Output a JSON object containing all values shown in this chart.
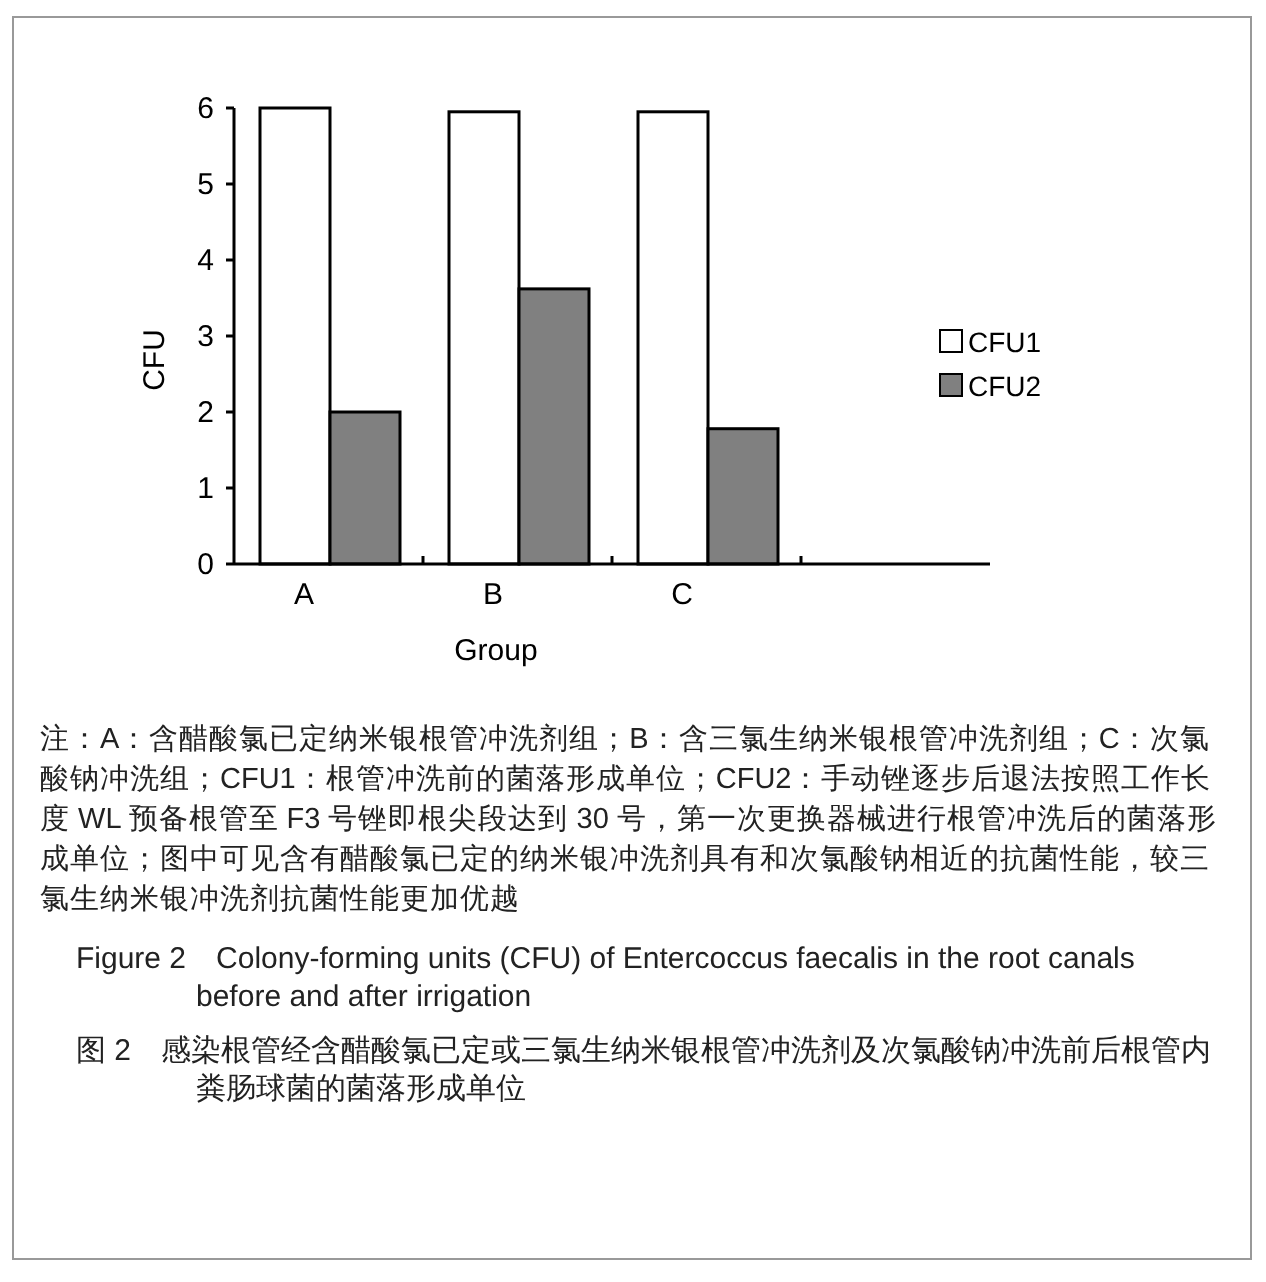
{
  "chart_data": {
    "type": "bar",
    "xlabel": "Group",
    "ylabel": "CFU",
    "categories": [
      "A",
      "B",
      "C",
      null
    ],
    "series": [
      {
        "name": "CFU1",
        "color": "#ffffff",
        "values": [
          6.0,
          5.95,
          5.95,
          null
        ]
      },
      {
        "name": "CFU2",
        "color": "#808080",
        "values": [
          2.0,
          3.62,
          1.78,
          null
        ]
      }
    ],
    "ylim": [
      0,
      6
    ],
    "yticks": [
      0,
      1,
      2,
      3,
      4,
      5,
      6
    ],
    "grid": false,
    "legend": "right",
    "annotations": [
      "注：A：含醋酸氯已定纳米银根管冲洗剂组；B：含三氯生纳米银根管冲洗剂组；C：次氯酸钠冲洗组；CFU1：根管冲洗前的菌落形成单位；CFU2：手动锉逐步后退法按照工作长度 WL 预备根管至 F3 号锉即根尖段达到 30 号，第一次更换器械进行根管冲洗后的菌落形成单位；图中可见含有醋酸氯已定的纳米银冲洗剂具有和次氯酸钠相近的抗菌性能，较三氯生纳米银冲洗剂抗菌性能更加优越",
      "Figure 2　Colony-forming units (CFU) of Entercoccus faecalis in the root canals before and after irrigation",
      "图 2　感染根管经含醋酸氯已定或三氯生纳米银根管冲洗剂及次氯酸钠冲洗前后根管内粪肠球菌的菌落形成单位"
    ]
  }
}
